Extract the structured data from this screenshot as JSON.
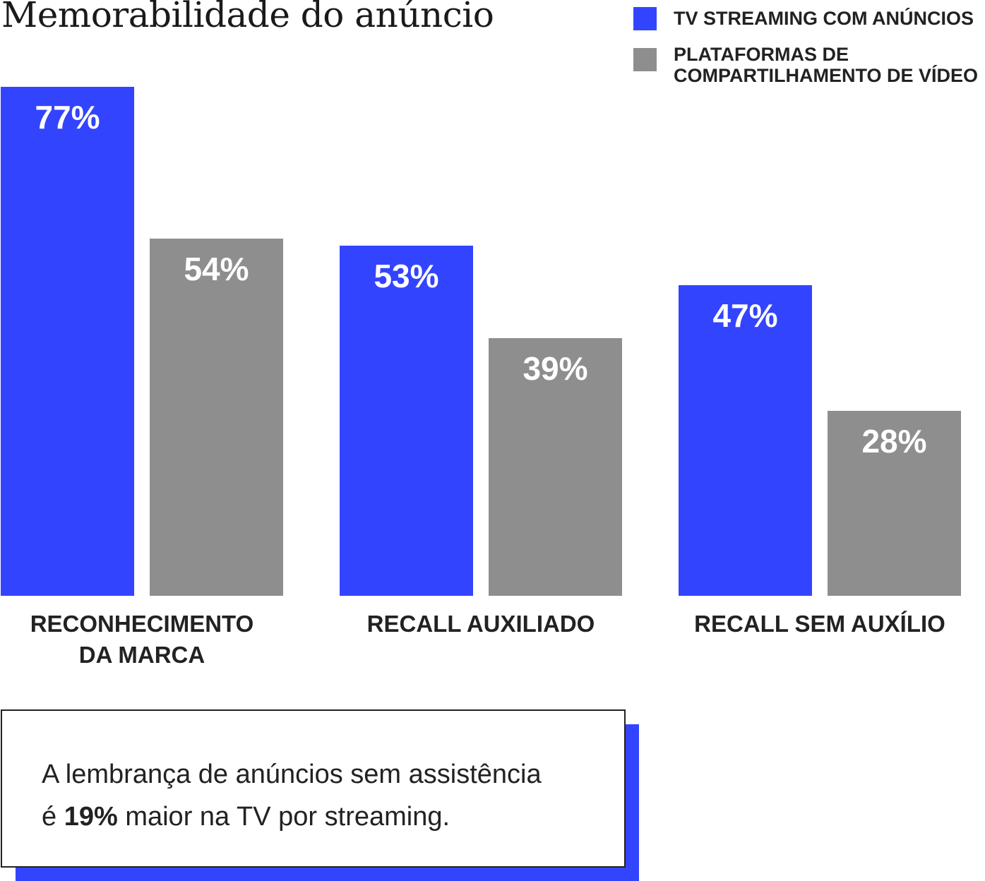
{
  "chart_data": {
    "type": "bar",
    "title": "Memorabilidade do anúncio",
    "categories": [
      "RECONHECIMENTO DA MARCA",
      "RECALL AUXILIADO",
      "RECALL SEM AUXÍLIO"
    ],
    "category_lines": [
      [
        "RECONHECIMENTO",
        "DA MARCA"
      ],
      [
        "RECALL AUXILIADO"
      ],
      [
        "RECALL SEM AUXÍLIO"
      ]
    ],
    "series": [
      {
        "name": "TV STREAMING COM ANÚNCIOS",
        "values": [
          77,
          53,
          47
        ],
        "labels": [
          "77%",
          "53%",
          "47%"
        ],
        "color": "#3344FF"
      },
      {
        "name": "PLATAFORMAS DE COMPARTILHAMENTO DE VÍDEO",
        "name_lines": [
          "PLATAFORMAS DE",
          "COMPARTILHAMENTO DE VÍDEO"
        ],
        "values": [
          54,
          39,
          28
        ],
        "labels": [
          "54%",
          "39%",
          "28%"
        ],
        "color": "#8E8E8E"
      }
    ],
    "ylim": [
      0,
      77
    ],
    "grid": false,
    "legend_position": "top-right",
    "xlabel": "",
    "ylabel": ""
  },
  "note": {
    "line1": "A lembrança de anúncios sem assistência",
    "line2_prefix": "é ",
    "line2_bold": "19%",
    "line2_suffix": " maior na TV por streaming."
  }
}
